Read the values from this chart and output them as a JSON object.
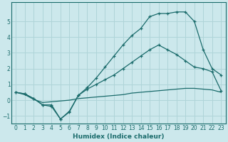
{
  "xlabel": "Humidex (Indice chaleur)",
  "background_color": "#cce8ec",
  "grid_color": "#afd4d8",
  "line_color": "#1a6b6b",
  "xlim": [
    -0.5,
    23.5
  ],
  "ylim": [
    -1.5,
    6.2
  ],
  "xticks": [
    0,
    1,
    2,
    3,
    4,
    5,
    6,
    7,
    8,
    9,
    10,
    11,
    12,
    13,
    14,
    15,
    16,
    17,
    18,
    19,
    20,
    21,
    22,
    23
  ],
  "yticks": [
    -1,
    0,
    1,
    2,
    3,
    4,
    5
  ],
  "curve_peak_x": [
    0,
    1,
    2,
    3,
    4,
    5,
    6,
    7,
    8,
    9,
    10,
    11,
    12,
    13,
    14,
    15,
    16,
    17,
    18,
    19,
    20,
    21,
    22,
    23
  ],
  "curve_peak_y": [
    0.5,
    0.4,
    0.1,
    -0.3,
    -0.4,
    -1.2,
    -0.75,
    0.3,
    0.8,
    1.4,
    2.1,
    2.8,
    3.5,
    4.1,
    4.55,
    5.3,
    5.5,
    5.5,
    5.6,
    5.6,
    5.0,
    3.2,
    2.0,
    1.6
  ],
  "curve_mid_x": [
    0,
    1,
    2,
    3,
    4,
    5,
    6,
    7,
    8,
    9,
    10,
    11,
    12,
    13,
    14,
    15,
    16,
    17,
    18,
    19,
    20,
    21,
    22,
    23
  ],
  "curve_mid_y": [
    0.5,
    0.4,
    0.1,
    -0.3,
    -0.3,
    -1.2,
    -0.7,
    0.3,
    0.7,
    1.0,
    1.3,
    1.6,
    2.0,
    2.4,
    2.8,
    3.2,
    3.5,
    3.2,
    2.9,
    2.5,
    2.1,
    2.0,
    1.8,
    0.6
  ],
  "curve_low_x": [
    0,
    1,
    2,
    3,
    4,
    5,
    6,
    7,
    8,
    9,
    10,
    11,
    12,
    13,
    14,
    15,
    16,
    17,
    18,
    19,
    20,
    21,
    22,
    23
  ],
  "curve_low_y": [
    0.5,
    0.35,
    0.05,
    -0.15,
    -0.1,
    -0.05,
    0.0,
    0.1,
    0.15,
    0.2,
    0.25,
    0.3,
    0.35,
    0.45,
    0.5,
    0.55,
    0.6,
    0.65,
    0.7,
    0.75,
    0.75,
    0.7,
    0.65,
    0.5
  ]
}
